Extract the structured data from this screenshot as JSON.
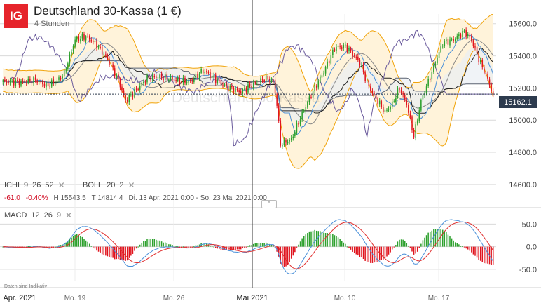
{
  "header": {
    "logo": "IG",
    "title": "Deutschland 30-Kassa (1 €)",
    "subtitle": "4 Stunden"
  },
  "indicators": {
    "ichi": {
      "name": "ICHI",
      "p1": "9",
      "p2": "26",
      "p3": "52"
    },
    "boll": {
      "name": "BOLL",
      "p1": "20",
      "p2": "2"
    },
    "macd": {
      "name": "MACD",
      "p1": "12",
      "p2": "26",
      "p3": "9"
    },
    "close_glyph": "✕"
  },
  "info": {
    "change": "-61.0",
    "change_pct": "-0.40%",
    "high": "H 15543.5",
    "low": "T 14814.4",
    "range": "Di. 13 Apr. 2021 0:00 - So. 23 Mai 2021 0:00"
  },
  "last_price": "15162.1",
  "watermark": "Deutschland 30-Kassa",
  "disclaimer": "Daten sind Indikativ",
  "colors": {
    "up": "#2ca02c",
    "down": "#e0141e",
    "boll": "#f0a30a",
    "boll_fill": "#fff3da",
    "ichi_cloud": "#e9eef3",
    "macd_line": "#4a90d9",
    "signal_line": "#e03030"
  },
  "chart_data": {
    "type": "candlestick",
    "price_axis": {
      "ticks": [
        14600,
        14800,
        15000,
        15200,
        15400,
        15600
      ],
      "labels": [
        "14600.0",
        "14800.0",
        "15000.0",
        "15200.0",
        "15400.0",
        "15600.0"
      ],
      "range": [
        14560,
        15660
      ]
    },
    "macd_axis": {
      "ticks": [
        50,
        0,
        -50
      ],
      "labels": [
        "50.0",
        "0.0",
        "-50.0"
      ],
      "range": [
        -75,
        80
      ]
    },
    "time_labels": [
      "Apr. 2021",
      "Mo. 19",
      "Mo. 26",
      "Mai 2021",
      "Mo. 10",
      "Mo. 17"
    ],
    "last_price": 15162.1,
    "anchors": [
      [
        0,
        15240
      ],
      [
        10,
        15235
      ],
      [
        18,
        15250
      ],
      [
        24,
        15215
      ],
      [
        30,
        15245
      ],
      [
        34,
        15290
      ],
      [
        40,
        15500
      ],
      [
        46,
        15520
      ],
      [
        52,
        15470
      ],
      [
        58,
        15380
      ],
      [
        64,
        15250
      ],
      [
        68,
        15120
      ],
      [
        74,
        15190
      ],
      [
        80,
        15260
      ],
      [
        86,
        15270
      ],
      [
        92,
        15260
      ],
      [
        98,
        15245
      ],
      [
        104,
        15240
      ],
      [
        110,
        15300
      ],
      [
        112,
        15305
      ],
      [
        116,
        15270
      ],
      [
        122,
        15220
      ],
      [
        126,
        15200
      ],
      [
        132,
        15175
      ],
      [
        138,
        15220
      ],
      [
        142,
        15240
      ],
      [
        146,
        15260
      ],
      [
        150,
        15240
      ],
      [
        152,
        15100
      ],
      [
        154,
        14850
      ],
      [
        160,
        14880
      ],
      [
        166,
        15040
      ],
      [
        172,
        15180
      ],
      [
        178,
        15300
      ],
      [
        184,
        15450
      ],
      [
        190,
        15460
      ],
      [
        194,
        15410
      ],
      [
        198,
        15360
      ],
      [
        202,
        15230
      ],
      [
        206,
        15150
      ],
      [
        212,
        15050
      ],
      [
        216,
        15100
      ],
      [
        220,
        15200
      ],
      [
        224,
        15100
      ],
      [
        228,
        14900
      ],
      [
        232,
        15120
      ],
      [
        238,
        15300
      ],
      [
        244,
        15480
      ],
      [
        250,
        15500
      ],
      [
        256,
        15550
      ],
      [
        260,
        15500
      ],
      [
        264,
        15380
      ],
      [
        268,
        15280
      ],
      [
        272,
        15162
      ]
    ]
  }
}
